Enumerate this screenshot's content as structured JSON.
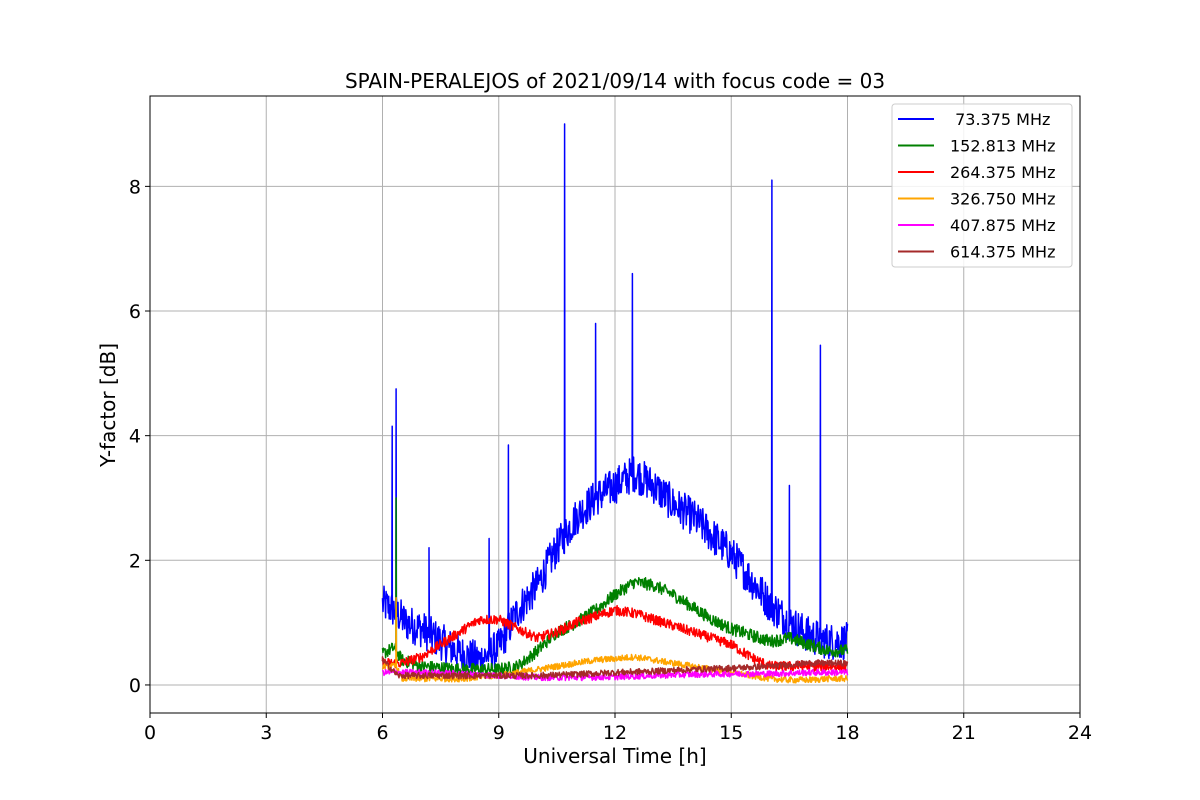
{
  "chart_data": {
    "type": "line",
    "title": "SPAIN-PERALEJOS of 2021/09/14 with focus code = 03",
    "xlabel": "Universal Time [h]",
    "ylabel": "Y-factor [dB]",
    "xlim": [
      0,
      24
    ],
    "ylim": [
      -0.45,
      9.45
    ],
    "x_ticks": [
      0,
      3,
      6,
      9,
      12,
      15,
      18,
      21,
      24
    ],
    "x_tick_labels": [
      "0",
      "3",
      "6",
      "9",
      "12",
      "15",
      "18",
      "21",
      "24"
    ],
    "y_ticks": [
      0,
      2,
      4,
      6,
      8
    ],
    "y_tick_labels": [
      "0",
      "2",
      "4",
      "6",
      "8"
    ],
    "grid": true,
    "legend_position": "top-right",
    "series": [
      {
        "name": "73.375 MHz",
        "label": " 73.375 MHz",
        "color": "#0000ff",
        "x": [
          6.0,
          6.3,
          6.6,
          7.0,
          7.5,
          8.0,
          8.5,
          9.0,
          9.5,
          10.0,
          10.5,
          11.0,
          11.5,
          12.0,
          12.5,
          13.0,
          13.5,
          14.0,
          14.5,
          15.0,
          15.5,
          16.0,
          16.5,
          17.0,
          17.5,
          18.0
        ],
        "y": [
          1.3,
          1.2,
          1.0,
          0.9,
          0.7,
          0.5,
          0.4,
          0.6,
          1.2,
          1.6,
          2.2,
          2.7,
          3.0,
          3.2,
          3.4,
          3.2,
          2.9,
          2.7,
          2.4,
          2.1,
          1.7,
          1.3,
          1.0,
          0.8,
          0.7,
          0.7
        ],
        "noise": 0.3,
        "spikes": [
          [
            6.25,
            4.15
          ],
          [
            6.35,
            4.75
          ],
          [
            7.2,
            2.2
          ],
          [
            8.75,
            2.35
          ],
          [
            9.25,
            3.85
          ],
          [
            10.7,
            9.0
          ],
          [
            11.5,
            5.8
          ],
          [
            12.45,
            6.6
          ],
          [
            16.05,
            8.1
          ],
          [
            16.5,
            3.2
          ],
          [
            17.3,
            5.45
          ]
        ]
      },
      {
        "name": "152.813 MHz",
        "label": "152.813 MHz",
        "color": "#008000",
        "x": [
          6.0,
          6.3,
          6.5,
          7.0,
          8.0,
          9.0,
          9.5,
          10.0,
          10.5,
          11.0,
          11.5,
          12.0,
          12.5,
          13.0,
          13.5,
          14.0,
          14.5,
          15.0,
          15.5,
          16.0,
          16.5,
          17.0,
          17.5,
          18.0
        ],
        "y": [
          0.5,
          0.6,
          0.4,
          0.3,
          0.25,
          0.25,
          0.3,
          0.55,
          0.85,
          1.0,
          1.2,
          1.45,
          1.65,
          1.6,
          1.45,
          1.25,
          1.05,
          0.9,
          0.8,
          0.7,
          0.75,
          0.65,
          0.55,
          0.55
        ],
        "noise": 0.1,
        "spikes": [
          [
            6.35,
            3.0
          ]
        ]
      },
      {
        "name": "264.375 MHz",
        "label": "264.375 MHz",
        "color": "#ff0000",
        "x": [
          6.0,
          6.5,
          7.0,
          7.5,
          8.0,
          8.5,
          9.0,
          9.5,
          10.0,
          10.5,
          11.0,
          11.5,
          12.0,
          12.5,
          13.0,
          13.5,
          14.0,
          14.5,
          15.0,
          15.5,
          16.0,
          16.5,
          17.0,
          17.5,
          18.0
        ],
        "y": [
          0.35,
          0.35,
          0.45,
          0.65,
          0.85,
          1.05,
          1.05,
          0.9,
          0.75,
          0.85,
          1.0,
          1.1,
          1.2,
          1.15,
          1.05,
          0.95,
          0.85,
          0.75,
          0.65,
          0.45,
          0.3,
          0.3,
          0.3,
          0.3,
          0.3
        ],
        "noise": 0.08,
        "spikes": []
      },
      {
        "name": "326.750 MHz",
        "label": "326.750 MHz",
        "color": "#ffa500",
        "x": [
          6.0,
          6.35,
          6.5,
          7.0,
          8.0,
          9.0,
          10.0,
          10.5,
          11.0,
          11.5,
          12.0,
          12.5,
          13.0,
          13.5,
          14.0,
          14.5,
          15.0,
          15.5,
          16.0,
          16.5,
          17.0,
          17.5,
          18.0
        ],
        "y": [
          0.3,
          0.3,
          0.1,
          0.1,
          0.1,
          0.15,
          0.25,
          0.3,
          0.35,
          0.4,
          0.42,
          0.45,
          0.4,
          0.35,
          0.3,
          0.25,
          0.2,
          0.15,
          0.1,
          0.08,
          0.08,
          0.1,
          0.1
        ],
        "noise": 0.05,
        "spikes": [
          [
            6.35,
            1.4
          ]
        ]
      },
      {
        "name": "407.875 MHz",
        "label": "407.875 MHz",
        "color": "#ff00ff",
        "x": [
          6.0,
          7.0,
          8.0,
          9.0,
          10.0,
          11.0,
          12.0,
          13.0,
          14.0,
          15.0,
          16.0,
          17.0,
          18.0
        ],
        "y": [
          0.2,
          0.2,
          0.18,
          0.15,
          0.12,
          0.12,
          0.13,
          0.15,
          0.17,
          0.18,
          0.18,
          0.2,
          0.2
        ],
        "noise": 0.05,
        "spikes": []
      },
      {
        "name": "614.375 MHz",
        "label": "614.375 MHz",
        "color": "#a52a2a",
        "x": [
          6.0,
          6.4,
          7.0,
          8.0,
          9.0,
          10.0,
          11.0,
          12.0,
          13.0,
          14.0,
          15.0,
          16.0,
          17.0,
          18.0
        ],
        "y": [
          0.4,
          0.15,
          0.15,
          0.15,
          0.15,
          0.15,
          0.17,
          0.2,
          0.22,
          0.25,
          0.27,
          0.3,
          0.35,
          0.35
        ],
        "noise": 0.05,
        "spikes": [
          [
            6.0,
            0.45
          ]
        ]
      }
    ]
  }
}
